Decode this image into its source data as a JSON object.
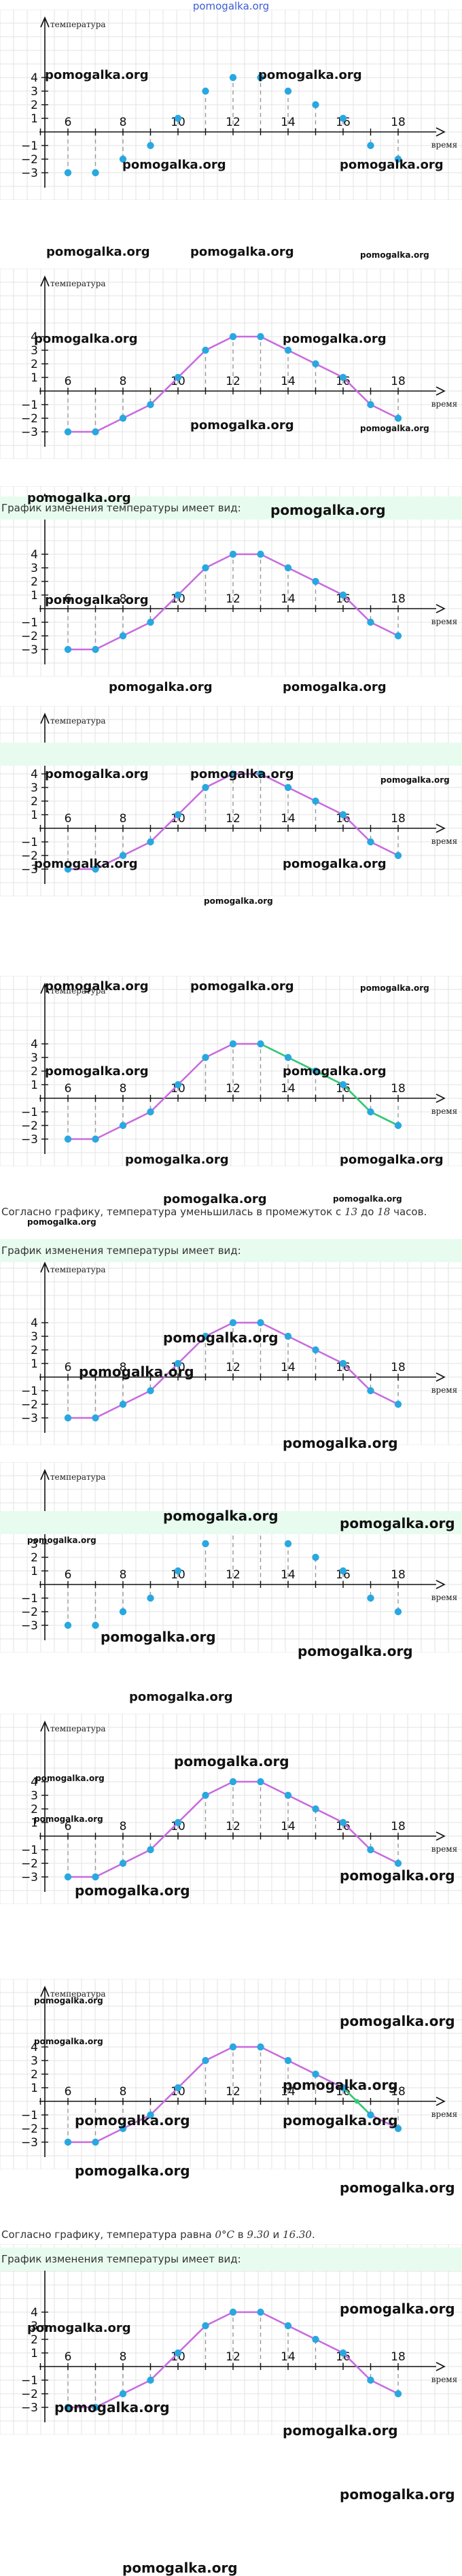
{
  "site_label": "pomogalka.org",
  "watermark": "pomogalka.org",
  "texts": {
    "intro": "График изменения температуры имеет вид:",
    "decrease_note_pre": "Согласно графику, температура уменьшилась в промежуток с ",
    "decrease_from": "13",
    "decrease_mid": " до ",
    "decrease_to": "18",
    "decrease_post": " часов.",
    "zero_note_pre": "Согласно графику, температура равна ",
    "zero_value": "0°C",
    "zero_mid": " в ",
    "zero_t1": "9.30",
    "zero_and": " и ",
    "zero_t2": "16.30",
    "zero_post": "."
  },
  "colors": {
    "point": "#29a8e0",
    "line": "#c86bdf",
    "highlight": "#2ecc71",
    "band": "#e8fbef",
    "grid": "#e3e3e3",
    "dash": "#999999"
  },
  "chart_data": {
    "type": "line",
    "xlabel": "время",
    "ylabel": "температура",
    "x_ticks": [
      "6",
      "8",
      "10",
      "12",
      "14",
      "16",
      "18"
    ],
    "y_ticks": [
      "4",
      "3",
      "2",
      "1",
      "−1",
      "−2",
      "−3"
    ],
    "x": [
      6,
      7,
      8,
      9,
      10,
      11,
      12,
      13,
      14,
      15,
      16,
      17,
      18
    ],
    "y": [
      -3,
      -3,
      -2,
      -1,
      1,
      3,
      4,
      4,
      3,
      2,
      1,
      -1,
      -2
    ],
    "xlim": [
      4.5,
      19
    ],
    "ylim": [
      -3.8,
      5
    ],
    "decrease_interval": [
      13,
      18
    ],
    "zero_crossings": [
      9.5,
      16.5
    ]
  }
}
